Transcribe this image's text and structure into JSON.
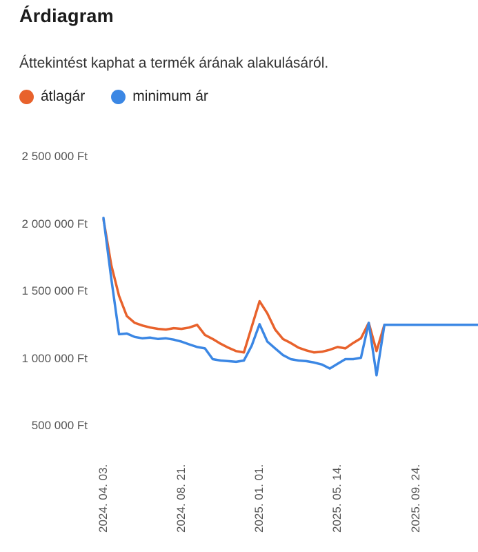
{
  "chart_data": {
    "type": "line",
    "title": "Árdiagram",
    "subtitle": "Áttekintést kaphat a termék árának alakulásáról.",
    "xlabel": "",
    "ylabel": "",
    "ylim": [
      500000,
      2500000
    ],
    "grid": false,
    "legend_position": "top-left",
    "currency_suffix": "Ft",
    "y_ticks": [
      {
        "value": 2500000,
        "label": "2 500 000 Ft"
      },
      {
        "value": 2000000,
        "label": "2 000 000 Ft"
      },
      {
        "value": 1500000,
        "label": "1 500 000 Ft"
      },
      {
        "value": 1000000,
        "label": "1 000 000 Ft"
      },
      {
        "value": 500000,
        "label": "500 000 Ft"
      }
    ],
    "x_ticks": [
      {
        "index": 0,
        "label": "2024. 04. 03."
      },
      {
        "index": 10,
        "label": "2024. 08. 21."
      },
      {
        "index": 20,
        "label": "2025. 01. 01."
      },
      {
        "index": 30,
        "label": "2025. 05. 14."
      },
      {
        "index": 40,
        "label": "2025. 09. 24."
      }
    ],
    "num_points": 49,
    "series": [
      {
        "name": "átlagár",
        "color": "#E8622C",
        "values": [
          2040000,
          1700000,
          1470000,
          1320000,
          1270000,
          1250000,
          1235000,
          1225000,
          1220000,
          1230000,
          1225000,
          1235000,
          1255000,
          1180000,
          1150000,
          1115000,
          1085000,
          1060000,
          1050000,
          1240000,
          1430000,
          1340000,
          1220000,
          1150000,
          1120000,
          1085000,
          1065000,
          1050000,
          1055000,
          1070000,
          1090000,
          1080000,
          1120000,
          1155000,
          1270000,
          1060000,
          1255000,
          1255000,
          1255000,
          1255000,
          1255000,
          1255000,
          1255000,
          1255000,
          1255000,
          1255000,
          1255000,
          1255000,
          1255000
        ]
      },
      {
        "name": "minimum ár",
        "color": "#3B87E4",
        "values": [
          2050000,
          1600000,
          1185000,
          1190000,
          1165000,
          1155000,
          1160000,
          1150000,
          1155000,
          1145000,
          1130000,
          1110000,
          1090000,
          1080000,
          1000000,
          990000,
          985000,
          980000,
          990000,
          1100000,
          1260000,
          1130000,
          1080000,
          1030000,
          1000000,
          990000,
          985000,
          975000,
          960000,
          930000,
          965000,
          1000000,
          1000000,
          1010000,
          1270000,
          880000,
          1255000,
          1255000,
          1255000,
          1255000,
          1255000,
          1255000,
          1255000,
          1255000,
          1255000,
          1255000,
          1255000,
          1255000,
          1255000
        ]
      }
    ]
  }
}
